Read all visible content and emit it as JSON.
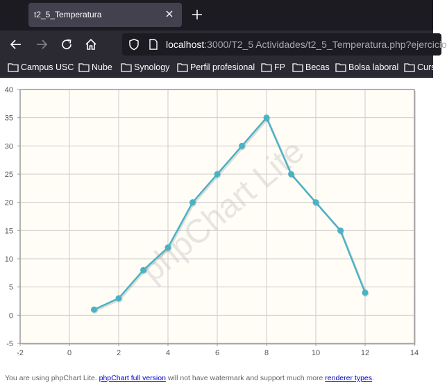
{
  "browser": {
    "tab_title": "t2_5_Temperatura",
    "url_host": "localhost",
    "url_rest": ":3000/T2_5 Actividades/t2_5_Temperatura.php?ejercicio",
    "bookmarks": [
      "Campus USC",
      "Nube",
      "Synology",
      "Perfil profesional",
      "FP",
      "Becas",
      "Bolsa laboral",
      "Curs"
    ]
  },
  "chart_data": {
    "type": "line",
    "xlim": [
      -2,
      14
    ],
    "ylim": [
      -5,
      40
    ],
    "x_ticks": [
      "-2",
      "0",
      "2",
      "4",
      "6",
      "8",
      "10",
      "12",
      "14"
    ],
    "y_ticks": [
      "-5",
      "0",
      "5",
      "10",
      "15",
      "20",
      "25",
      "30",
      "35",
      "40"
    ],
    "x": [
      1,
      2,
      3,
      4,
      5,
      6,
      7,
      8,
      9,
      10,
      11,
      12
    ],
    "y": [
      1,
      3,
      8,
      12,
      20,
      25,
      30,
      35,
      25,
      20,
      15,
      4
    ],
    "grid": true,
    "watermark": "phpChart Lite",
    "colors": {
      "line": "#4bb2c5",
      "plot_bg": "#fffdf6",
      "grid": "#cccccc"
    }
  },
  "footer": {
    "prefix": "You are using phpChart Lite. ",
    "link1": "phpChart full version",
    "middle": " will not have watermark and support much more ",
    "link2": "renderer types",
    "suffix": "."
  }
}
